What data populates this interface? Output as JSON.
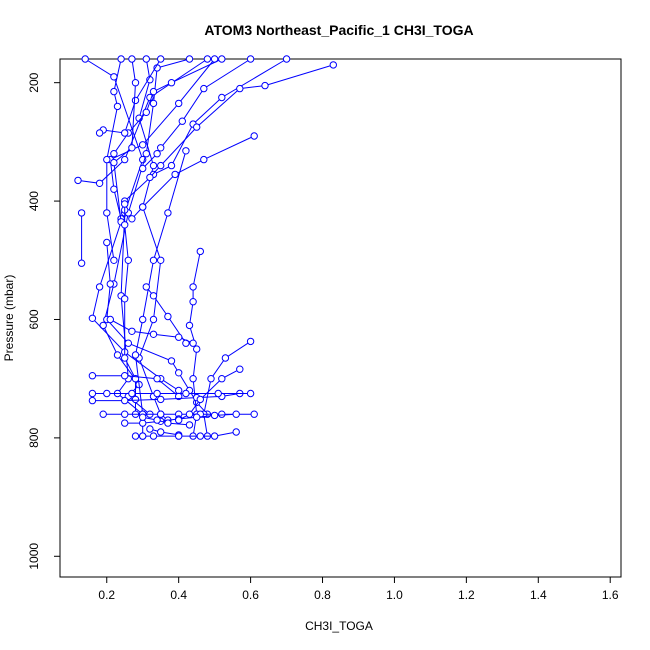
{
  "chart_data": {
    "type": "line",
    "title": "ATOM3 Northeast_Pacific_1 CH3I_TOGA",
    "xlabel": "CH3I_TOGA",
    "ylabel": "Pressure (mbar)",
    "xlim": [
      0.07,
      1.63
    ],
    "ylim": [
      1035,
      160
    ],
    "y_reversed": true,
    "x_ticks": [
      "0.2",
      "0.4",
      "0.6",
      "0.8",
      "1.0",
      "1.2",
      "1.4",
      "1.6"
    ],
    "y_ticks": [
      "200",
      "400",
      "600",
      "800",
      "1000"
    ],
    "grid": false,
    "legend": "none",
    "series_color": "#0000ff",
    "series": [
      {
        "values": [
          [
            0.14,
            160
          ],
          [
            0.22,
            190
          ],
          [
            0.3,
            330
          ],
          [
            0.25,
            420
          ],
          [
            0.24,
            560
          ],
          [
            0.26,
            700
          ],
          [
            0.23,
            725
          ],
          [
            0.3,
            760
          ]
        ]
      },
      {
        "values": [
          [
            0.31,
            160
          ],
          [
            0.32,
            195
          ],
          [
            0.29,
            260
          ],
          [
            0.33,
            340
          ],
          [
            0.3,
            410
          ],
          [
            0.35,
            500
          ],
          [
            0.33,
            600
          ],
          [
            0.29,
            665
          ],
          [
            0.33,
            730
          ],
          [
            0.35,
            760
          ],
          [
            0.37,
            770
          ]
        ]
      },
      {
        "values": [
          [
            0.43,
            160
          ],
          [
            0.34,
            175
          ],
          [
            0.33,
            235
          ],
          [
            0.31,
            320
          ],
          [
            0.26,
            420
          ],
          [
            0.22,
            540
          ],
          [
            0.19,
            610
          ],
          [
            0.23,
            660
          ],
          [
            0.29,
            710
          ],
          [
            0.26,
            730
          ],
          [
            0.32,
            760
          ]
        ]
      },
      {
        "values": [
          [
            0.48,
            160
          ],
          [
            0.32,
            225
          ],
          [
            0.25,
            330
          ],
          [
            0.18,
            370
          ],
          [
            0.12,
            365
          ]
        ]
      },
      {
        "values": [
          [
            0.5,
            160
          ],
          [
            0.4,
            235
          ],
          [
            0.3,
            305
          ],
          [
            0.21,
            330
          ],
          [
            0.22,
            380
          ],
          [
            0.24,
            430
          ]
        ]
      },
      {
        "values": [
          [
            0.6,
            160
          ],
          [
            0.47,
            210
          ],
          [
            0.41,
            265
          ],
          [
            0.35,
            310
          ],
          [
            0.34,
            320
          ],
          [
            0.3,
            345
          ]
        ]
      },
      {
        "values": [
          [
            0.7,
            160
          ],
          [
            0.52,
            225
          ],
          [
            0.44,
            270
          ],
          [
            0.38,
            340
          ],
          [
            0.33,
            355
          ],
          [
            0.25,
            400
          ],
          [
            0.25,
            415
          ]
        ]
      },
      {
        "values": [
          [
            0.83,
            170
          ],
          [
            0.64,
            205
          ],
          [
            0.57,
            210
          ],
          [
            0.45,
            275
          ],
          [
            0.35,
            340
          ],
          [
            0.32,
            360
          ]
        ]
      },
      {
        "values": [
          [
            0.52,
            160
          ],
          [
            0.38,
            200
          ],
          [
            0.33,
            215
          ],
          [
            0.31,
            250
          ],
          [
            0.26,
            285
          ],
          [
            0.22,
            320
          ]
        ]
      },
      {
        "values": [
          [
            0.35,
            160
          ],
          [
            0.28,
            230
          ],
          [
            0.25,
            285
          ],
          [
            0.19,
            280
          ],
          [
            0.18,
            285
          ]
        ]
      },
      {
        "values": [
          [
            0.24,
            160
          ],
          [
            0.22,
            215
          ],
          [
            0.23,
            240
          ],
          [
            0.2,
            330
          ],
          [
            0.2,
            420
          ],
          [
            0.22,
            500
          ]
        ]
      },
      {
        "values": [
          [
            0.27,
            160
          ],
          [
            0.28,
            200
          ],
          [
            0.27,
            310
          ],
          [
            0.22,
            335
          ],
          [
            0.24,
            435
          ],
          [
            0.18,
            545
          ],
          [
            0.16,
            598
          ],
          [
            0.25,
            655
          ],
          [
            0.35,
            700
          ],
          [
            0.4,
            720
          ]
        ]
      },
      {
        "values": [
          [
            0.61,
            290
          ],
          [
            0.47,
            330
          ],
          [
            0.39,
            355
          ],
          [
            0.3,
            410
          ],
          [
            0.27,
            430
          ]
        ]
      },
      {
        "values": [
          [
            0.42,
            315
          ],
          [
            0.37,
            420
          ],
          [
            0.33,
            500
          ],
          [
            0.3,
            600
          ],
          [
            0.28,
            660
          ],
          [
            0.3,
            760
          ],
          [
            0.3,
            797
          ]
        ]
      },
      {
        "values": [
          [
            0.13,
            420
          ],
          [
            0.13,
            505
          ]
        ]
      },
      {
        "values": [
          [
            0.25,
            405
          ],
          [
            0.25,
            440
          ],
          [
            0.26,
            500
          ],
          [
            0.25,
            565
          ],
          [
            0.25,
            665
          ],
          [
            0.28,
            700
          ],
          [
            0.28,
            735
          ],
          [
            0.28,
            760
          ]
        ]
      },
      {
        "values": [
          [
            0.2,
            470
          ],
          [
            0.21,
            540
          ],
          [
            0.2,
            600
          ],
          [
            0.26,
            640
          ],
          [
            0.38,
            670
          ],
          [
            0.4,
            690
          ],
          [
            0.43,
            720
          ],
          [
            0.45,
            740
          ],
          [
            0.48,
            760
          ]
        ]
      },
      {
        "values": [
          [
            0.46,
            485
          ],
          [
            0.44,
            545
          ],
          [
            0.44,
            570
          ],
          [
            0.43,
            610
          ],
          [
            0.45,
            650
          ],
          [
            0.44,
            700
          ],
          [
            0.45,
            760
          ],
          [
            0.44,
            797
          ]
        ]
      },
      {
        "values": [
          [
            0.16,
            695
          ],
          [
            0.25,
            695
          ],
          [
            0.34,
            700
          ],
          [
            0.4,
            730
          ]
        ]
      },
      {
        "values": [
          [
            0.6,
            637
          ],
          [
            0.53,
            665
          ],
          [
            0.49,
            700
          ],
          [
            0.47,
            760
          ],
          [
            0.48,
            797
          ]
        ]
      },
      {
        "values": [
          [
            0.57,
            725
          ],
          [
            0.52,
            730
          ],
          [
            0.45,
            732
          ],
          [
            0.35,
            735
          ],
          [
            0.25,
            737
          ],
          [
            0.16,
            737
          ]
        ]
      },
      {
        "values": [
          [
            0.16,
            725
          ],
          [
            0.2,
            725
          ],
          [
            0.27,
            725
          ],
          [
            0.34,
            725
          ],
          [
            0.42,
            725
          ],
          [
            0.51,
            725
          ],
          [
            0.6,
            725
          ]
        ]
      },
      {
        "values": [
          [
            0.19,
            760
          ],
          [
            0.25,
            760
          ],
          [
            0.3,
            760
          ],
          [
            0.35,
            760
          ],
          [
            0.4,
            760
          ],
          [
            0.46,
            760
          ],
          [
            0.52,
            760
          ],
          [
            0.61,
            760
          ]
        ]
      },
      {
        "values": [
          [
            0.56,
            760
          ],
          [
            0.5,
            762
          ],
          [
            0.45,
            765
          ],
          [
            0.4,
            768
          ],
          [
            0.35,
            772
          ],
          [
            0.3,
            775
          ],
          [
            0.25,
            775
          ]
        ]
      },
      {
        "values": [
          [
            0.32,
            785
          ],
          [
            0.35,
            790
          ],
          [
            0.4,
            795
          ]
        ]
      },
      {
        "values": [
          [
            0.28,
            797
          ],
          [
            0.3,
            797
          ],
          [
            0.33,
            797
          ],
          [
            0.4,
            797
          ],
          [
            0.46,
            797
          ],
          [
            0.5,
            797
          ],
          [
            0.56,
            790
          ]
        ]
      },
      {
        "values": [
          [
            0.57,
            684
          ],
          [
            0.52,
            700
          ],
          [
            0.46,
            735
          ],
          [
            0.43,
            760
          ],
          [
            0.4,
            770
          ]
        ]
      },
      {
        "values": [
          [
            0.31,
            545
          ],
          [
            0.33,
            560
          ],
          [
            0.37,
            595
          ],
          [
            0.42,
            640
          ]
        ]
      },
      {
        "values": [
          [
            0.21,
            600
          ],
          [
            0.27,
            620
          ],
          [
            0.33,
            625
          ],
          [
            0.4,
            630
          ],
          [
            0.44,
            640
          ]
        ]
      },
      {
        "values": [
          [
            0.3,
            765
          ],
          [
            0.34,
            770
          ],
          [
            0.37,
            775
          ],
          [
            0.43,
            778
          ]
        ]
      }
    ]
  }
}
